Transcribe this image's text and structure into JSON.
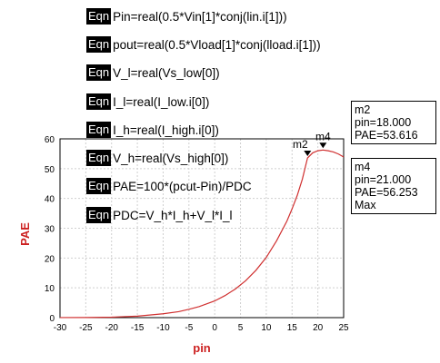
{
  "equations": [
    {
      "tag": "Eqn",
      "expr": "Pin=real(0.5*Vin[1]*conj(lin.i[1]))"
    },
    {
      "tag": "Eqn",
      "expr": "pout=real(0.5*Vload[1]*conj(lload.i[1]))"
    },
    {
      "tag": "Eqn",
      "expr": "V_l=real(Vs_low[0])"
    },
    {
      "tag": "Eqn",
      "expr": "I_l=real(I_low.i[0])"
    },
    {
      "tag": "Eqn",
      "expr": "I_h=real(I_high.i[0])"
    },
    {
      "tag": "Eqn",
      "expr": "V_h=real(Vs_high[0])"
    },
    {
      "tag": "Eqn",
      "expr": "PAE=100*(pcut-Pin)/PDC"
    },
    {
      "tag": "Eqn",
      "expr": "PDC=V_h*I_h+V_l*I_l"
    }
  ],
  "markers": {
    "m2": {
      "name": "m2",
      "line1": "pin=18.000",
      "line2": "PAE=53.616",
      "line3": ""
    },
    "m4": {
      "name": "m4",
      "line1": "pin=21.000",
      "line2": "PAE=56.253",
      "line3": "Max"
    }
  },
  "chart_data": {
    "type": "line",
    "xlabel": "pin",
    "ylabel": "PAE",
    "xlim": [
      -30,
      25
    ],
    "ylim": [
      0,
      60
    ],
    "xticks": [
      -30,
      -25,
      -20,
      -15,
      -10,
      -5,
      0,
      5,
      10,
      15,
      20,
      25
    ],
    "yticks": [
      0,
      10,
      20,
      30,
      40,
      50,
      60
    ],
    "grid": true,
    "colors": {
      "series": "#d03030",
      "axis_label": "#cc2020"
    },
    "series": [
      {
        "x": [
          -30,
          -25,
          -20,
          -15,
          -10,
          -7,
          -5,
          -3,
          0,
          2,
          4,
          6,
          8,
          10,
          12,
          14,
          15,
          16,
          17,
          18,
          19,
          20,
          21,
          22,
          23,
          24,
          25
        ],
        "y": [
          0.02,
          0.05,
          0.15,
          0.5,
          1.3,
          2.0,
          2.8,
          3.7,
          5.6,
          7.4,
          9.6,
          12.4,
          15.9,
          20.2,
          25.8,
          32.4,
          36.5,
          41.0,
          46.5,
          53.6,
          55.3,
          56.0,
          56.25,
          56.0,
          55.6,
          54.9,
          53.9
        ]
      }
    ],
    "markers": [
      {
        "name": "m2",
        "x": 18,
        "y": 53.616
      },
      {
        "name": "m4",
        "x": 21,
        "y": 56.253
      }
    ]
  }
}
